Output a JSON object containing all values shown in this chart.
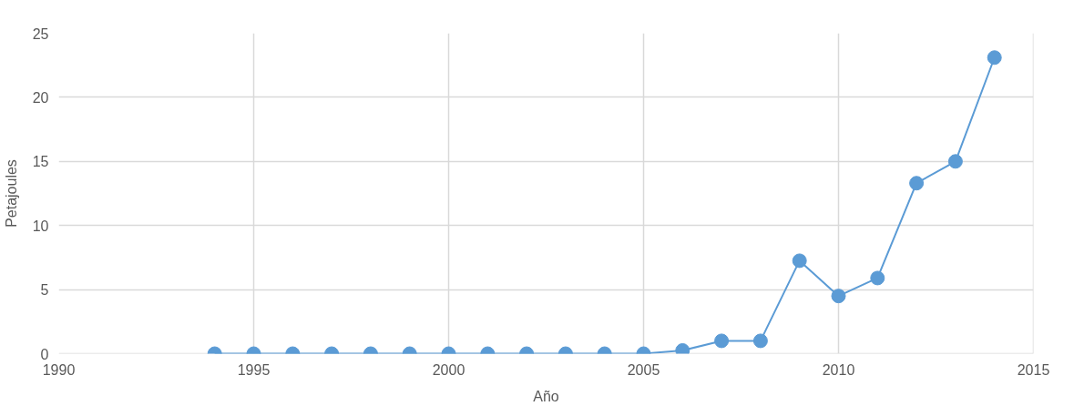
{
  "chart_data": {
    "type": "line",
    "xlabel": "Año",
    "ylabel": "Petajoules",
    "x": [
      1994,
      1995,
      1996,
      1997,
      1998,
      1999,
      2000,
      2001,
      2002,
      2003,
      2004,
      2005,
      2006,
      2007,
      2008,
      2009,
      2010,
      2011,
      2012,
      2013,
      2014
    ],
    "series": [
      {
        "color": "#5b9bd5",
        "values": [
          0,
          0,
          0,
          0,
          0,
          0,
          0,
          0,
          0,
          0,
          0,
          0,
          0.25,
          1.0,
          1.0,
          7.25,
          4.5,
          5.9,
          13.3,
          15.0,
          23.1
        ]
      }
    ],
    "xlim": [
      1990,
      2015
    ],
    "xticks": [
      1990,
      1995,
      2000,
      2005,
      2010,
      2015
    ],
    "ylim": [
      0,
      25
    ],
    "yticks": [
      0,
      5,
      10,
      15,
      20,
      25
    ],
    "grid": true,
    "marker": "circle",
    "line_style": "solid"
  }
}
